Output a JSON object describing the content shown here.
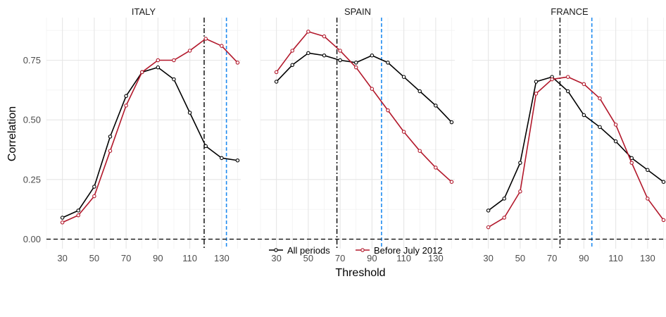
{
  "chart_data": {
    "type": "line",
    "xlabel": "Threshold",
    "ylabel": "Correlation",
    "xlim": [
      20,
      142
    ],
    "ylim": [
      -0.04,
      0.925
    ],
    "x_ticks": [
      30,
      50,
      70,
      90,
      110,
      130
    ],
    "y_ticks": [
      0.0,
      0.25,
      0.5,
      0.75
    ],
    "y_tick_labels": [
      "0.00",
      "0.25",
      "0.50",
      "0.75"
    ],
    "x": [
      30,
      40,
      50,
      60,
      70,
      80,
      90,
      100,
      110,
      120,
      130,
      140
    ],
    "grid": true,
    "legend_position": "bottom",
    "legend": [
      "All periods",
      "Before July 2012"
    ],
    "series_colors": {
      "All periods": "#000000",
      "Before July 2012": "#b2182b"
    },
    "reference_lines": {
      "horizontal_zero_color": "#000000",
      "black_dashdot_color": "#000000",
      "blue_dashed_color": "#1f8bf0"
    },
    "panels": [
      {
        "name": "ITALY",
        "vline_black": 119,
        "vline_blue": 133,
        "series": [
          {
            "name": "All periods",
            "values": [
              0.09,
              0.12,
              0.22,
              0.43,
              0.6,
              0.7,
              0.72,
              0.67,
              0.53,
              0.39,
              0.34,
              0.33
            ]
          },
          {
            "name": "Before July 2012",
            "values": [
              0.07,
              0.1,
              0.18,
              0.37,
              0.56,
              0.7,
              0.75,
              0.75,
              0.79,
              0.84,
              0.81,
              0.74
            ]
          }
        ]
      },
      {
        "name": "SPAIN",
        "vline_black": 68,
        "vline_blue": 96,
        "series": [
          {
            "name": "All periods",
            "values": [
              0.66,
              0.73,
              0.78,
              0.77,
              0.75,
              0.74,
              0.77,
              0.74,
              0.68,
              0.62,
              0.56,
              0.49
            ]
          },
          {
            "name": "Before July 2012",
            "values": [
              0.7,
              0.79,
              0.87,
              0.85,
              0.79,
              0.72,
              0.63,
              0.54,
              0.45,
              0.37,
              0.3,
              0.24
            ]
          }
        ]
      },
      {
        "name": "FRANCE",
        "vline_black": 75,
        "vline_blue": 95,
        "series": [
          {
            "name": "All periods",
            "values": [
              0.12,
              0.17,
              0.32,
              0.66,
              0.68,
              0.62,
              0.52,
              0.47,
              0.41,
              0.34,
              0.29,
              0.24
            ]
          },
          {
            "name": "Before July 2012",
            "values": [
              0.05,
              0.09,
              0.2,
              0.61,
              0.67,
              0.68,
              0.65,
              0.59,
              0.48,
              0.32,
              0.17,
              0.08
            ]
          }
        ]
      }
    ]
  }
}
